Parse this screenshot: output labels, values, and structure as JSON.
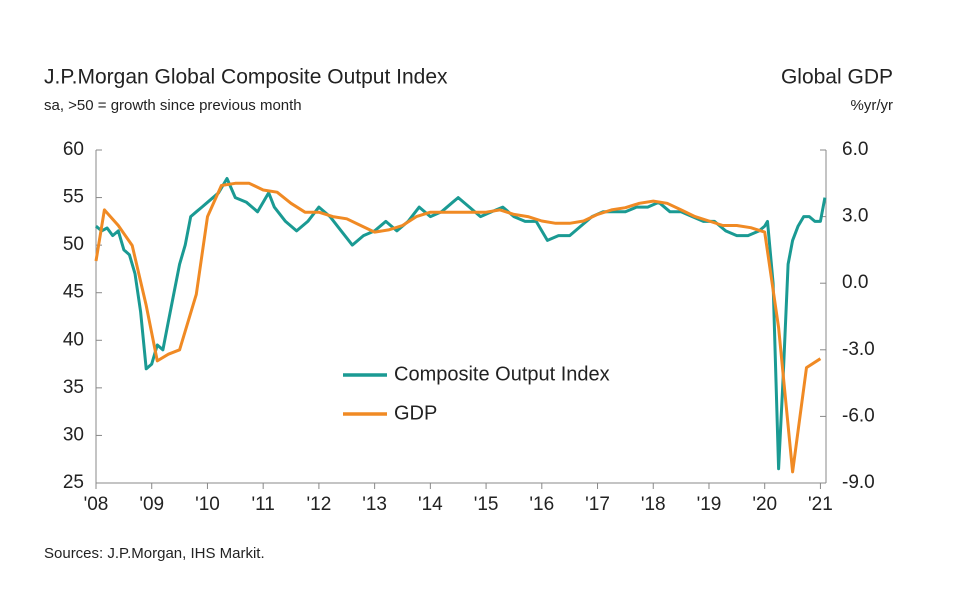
{
  "chart_data": {
    "type": "line",
    "title": "J.P.Morgan Global Composite Output Index",
    "subtitle": "sa, >50 = growth since previous month",
    "y2_title": "Global GDP",
    "y2_subtitle": "%yr/yr",
    "source": "Sources: J.P.Morgan, IHS Markit.",
    "xlim": [
      2008,
      2021.1
    ],
    "xticks": [
      {
        "value": 2008,
        "label": "'08"
      },
      {
        "value": 2009,
        "label": "'09"
      },
      {
        "value": 2010,
        "label": "'10"
      },
      {
        "value": 2011,
        "label": "'11"
      },
      {
        "value": 2012,
        "label": "'12"
      },
      {
        "value": 2013,
        "label": "'13"
      },
      {
        "value": 2014,
        "label": "'14"
      },
      {
        "value": 2015,
        "label": "'15"
      },
      {
        "value": 2016,
        "label": "'16"
      },
      {
        "value": 2017,
        "label": "'17"
      },
      {
        "value": 2018,
        "label": "'18"
      },
      {
        "value": 2019,
        "label": "'19"
      },
      {
        "value": 2020,
        "label": "'20"
      },
      {
        "value": 2021,
        "label": "'21"
      }
    ],
    "ylim": [
      25,
      60
    ],
    "yticks": [
      25,
      30,
      35,
      40,
      45,
      50,
      55,
      60
    ],
    "y2lim": [
      -9,
      6
    ],
    "y2ticks": [
      {
        "value": -9,
        "label": "-9.0"
      },
      {
        "value": -6,
        "label": "-6.0"
      },
      {
        "value": -3,
        "label": "-3.0"
      },
      {
        "value": 0,
        "label": "0.0"
      },
      {
        "value": 3,
        "label": "3.0"
      },
      {
        "value": 6,
        "label": "6.0"
      }
    ],
    "series": [
      {
        "name": "Composite Output Index",
        "color": "#1a9a93",
        "x": [
          2008.0,
          2008.1,
          2008.2,
          2008.3,
          2008.4,
          2008.5,
          2008.6,
          2008.7,
          2008.8,
          2008.9,
          2009.0,
          2009.1,
          2009.2,
          2009.3,
          2009.4,
          2009.5,
          2009.6,
          2009.7,
          2009.8,
          2009.9,
          2010.0,
          2010.2,
          2010.35,
          2010.5,
          2010.7,
          2010.9,
          2011.1,
          2011.2,
          2011.4,
          2011.6,
          2011.8,
          2012.0,
          2012.2,
          2012.4,
          2012.6,
          2012.8,
          2013.0,
          2013.2,
          2013.4,
          2013.6,
          2013.8,
          2014.0,
          2014.2,
          2014.4,
          2014.5,
          2014.7,
          2014.9,
          2015.1,
          2015.3,
          2015.5,
          2015.7,
          2015.9,
          2016.1,
          2016.3,
          2016.5,
          2016.7,
          2016.9,
          2017.1,
          2017.3,
          2017.5,
          2017.7,
          2017.9,
          2018.1,
          2018.3,
          2018.5,
          2018.7,
          2018.9,
          2019.1,
          2019.3,
          2019.5,
          2019.7,
          2019.9,
          2020.0,
          2020.05,
          2020.15,
          2020.25,
          2020.33,
          2020.42,
          2020.5,
          2020.6,
          2020.7,
          2020.8,
          2020.9,
          2021.0,
          2021.08
        ],
        "values": [
          52,
          51.5,
          51.8,
          51,
          51.5,
          49.5,
          49,
          47,
          43,
          37,
          37.5,
          39.5,
          39,
          42,
          45,
          48,
          50,
          53,
          53.5,
          54,
          54.5,
          55.5,
          57,
          55,
          54.5,
          53.5,
          55.5,
          54,
          52.5,
          51.5,
          52.5,
          54,
          53,
          51.5,
          50,
          51,
          51.5,
          52.5,
          51.5,
          52.5,
          54,
          53,
          53.5,
          54.5,
          55,
          54,
          53,
          53.5,
          54,
          53,
          52.5,
          52.5,
          50.5,
          51,
          51,
          52,
          53,
          53.5,
          53.5,
          53.5,
          54,
          54,
          54.5,
          53.5,
          53.5,
          53,
          52.5,
          52.5,
          51.5,
          51,
          51,
          51.5,
          52,
          52.5,
          46,
          26.5,
          36,
          48,
          50.5,
          52,
          53,
          53,
          52.5,
          52.5,
          55
        ]
      },
      {
        "name": "GDP",
        "color": "#f08a24",
        "axis": "y2",
        "x": [
          2008.0,
          2008.15,
          2008.4,
          2008.65,
          2008.9,
          2009.1,
          2009.3,
          2009.5,
          2009.8,
          2010.0,
          2010.25,
          2010.5,
          2010.75,
          2011.0,
          2011.25,
          2011.5,
          2011.75,
          2012.0,
          2012.25,
          2012.5,
          2012.75,
          2013.0,
          2013.25,
          2013.5,
          2013.75,
          2014.0,
          2014.25,
          2014.5,
          2014.75,
          2015.0,
          2015.25,
          2015.5,
          2015.75,
          2016.0,
          2016.25,
          2016.5,
          2016.75,
          2017.0,
          2017.25,
          2017.5,
          2017.75,
          2018.0,
          2018.25,
          2018.5,
          2018.75,
          2019.0,
          2019.25,
          2019.5,
          2019.75,
          2020.0,
          2020.25,
          2020.5,
          2020.75,
          2021.0
        ],
        "values": [
          1,
          3.3,
          2.6,
          1.7,
          -1,
          -3.5,
          -3.2,
          -3,
          -0.5,
          3,
          4.4,
          4.5,
          4.5,
          4.2,
          4.1,
          3.6,
          3.2,
          3.2,
          3.0,
          2.9,
          2.6,
          2.3,
          2.4,
          2.6,
          3.0,
          3.2,
          3.2,
          3.2,
          3.2,
          3.2,
          3.3,
          3.1,
          3.0,
          2.8,
          2.7,
          2.7,
          2.8,
          3.1,
          3.3,
          3.4,
          3.6,
          3.7,
          3.6,
          3.3,
          3.0,
          2.8,
          2.6,
          2.6,
          2.5,
          2.3,
          -2,
          -8.5,
          -3.8,
          -3.4
        ]
      }
    ]
  }
}
